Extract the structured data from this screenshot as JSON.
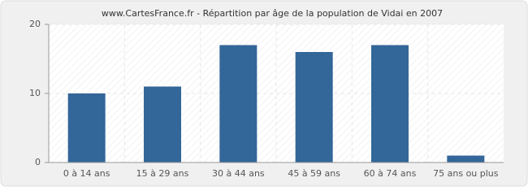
{
  "chart_data": {
    "type": "bar",
    "title": "www.CartesFrance.fr - Répartition par âge de la population de Vidai en 2007",
    "categories": [
      "0 à 14 ans",
      "15 à 29 ans",
      "30 à 44 ans",
      "45 à 59 ans",
      "60 à 74 ans",
      "75 ans ou plus"
    ],
    "values": [
      10,
      11,
      17,
      16,
      17,
      1
    ],
    "color": "#336699",
    "ylim": [
      0,
      20
    ],
    "yticks": [
      0,
      10,
      20
    ],
    "grid": true
  }
}
